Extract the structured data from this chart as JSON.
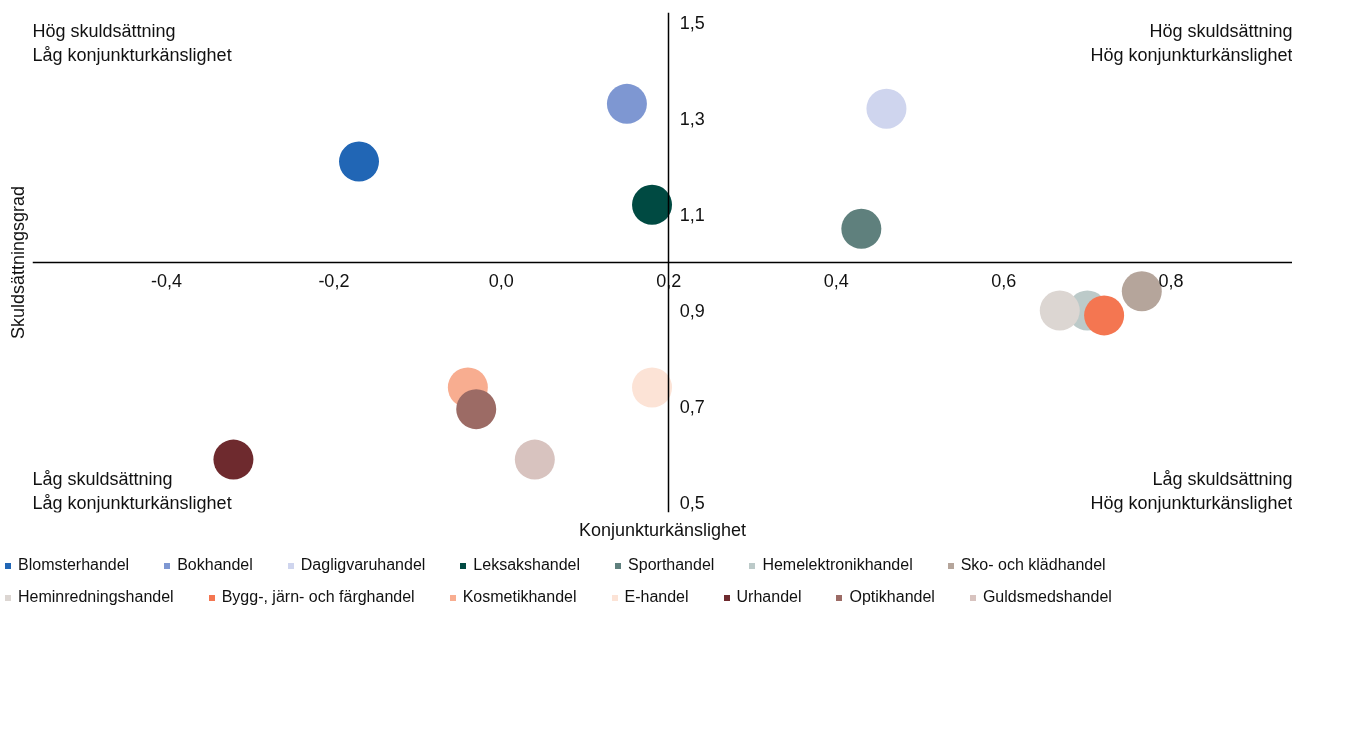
{
  "chart_data": {
    "type": "scatter",
    "xlabel": "Konjunkturkänslighet",
    "ylabel": "Skuldsättningsgrad",
    "xlim": [
      -0.56,
      0.945
    ],
    "ylim": [
      0.48,
      1.52
    ],
    "xticks": [
      {
        "value": -0.4,
        "label": "-0,4"
      },
      {
        "value": -0.2,
        "label": "-0,2"
      },
      {
        "value": 0.0,
        "label": "0,0"
      },
      {
        "value": 0.2,
        "label": "0,2"
      },
      {
        "value": 0.4,
        "label": "0,4"
      },
      {
        "value": 0.6,
        "label": "0,6"
      },
      {
        "value": 0.8,
        "label": "0,8"
      }
    ],
    "yticks": [
      {
        "value": 0.5,
        "label": "0,5"
      },
      {
        "value": 0.7,
        "label": "0,7"
      },
      {
        "value": 0.9,
        "label": "0,9"
      },
      {
        "value": 1.1,
        "label": "1,1"
      },
      {
        "value": 1.3,
        "label": "1,3"
      },
      {
        "value": 1.5,
        "label": "1,5"
      }
    ],
    "marker": "circle",
    "legend": "bottom",
    "annotations": [
      "Hög skuldsättning\nLåg konjunkturkänslighet",
      "Hög skuldsättning\nHög konjunkturkänslighet",
      "Låg skuldsättning\nLåg konjunkturkänslighet",
      "Låg skuldsättning\nHög konjunkturkänslighet"
    ],
    "series": [
      {
        "name": "Blomsterhandel",
        "color": "#2166b5",
        "x": [
          -0.17
        ],
        "values": [
          1.21
        ]
      },
      {
        "name": "Bokhandel",
        "color": "#7e97d2",
        "x": [
          0.15
        ],
        "values": [
          1.33
        ]
      },
      {
        "name": "Dagligvaruhandel",
        "color": "#cfd5ee",
        "x": [
          0.46
        ],
        "values": [
          1.32
        ]
      },
      {
        "name": "Leksakshandel",
        "color": "#004a42",
        "x": [
          0.18
        ],
        "values": [
          1.12
        ]
      },
      {
        "name": "Sporthandel",
        "color": "#5f807d",
        "x": [
          0.43
        ],
        "values": [
          1.07
        ]
      },
      {
        "name": "Hemelektronikhandel",
        "color": "#bccac9",
        "x": [
          0.7
        ],
        "values": [
          0.9
        ]
      },
      {
        "name": "Sko- och klädhandel",
        "color": "#b5a59b",
        "x": [
          0.765
        ],
        "values": [
          0.94
        ]
      },
      {
        "name": "Heminredningshandel",
        "color": "#dcd6d2",
        "x": [
          0.667
        ],
        "values": [
          0.9
        ]
      },
      {
        "name": "Bygg-, järn- och färghandel",
        "color": "#f47651",
        "x": [
          0.72
        ],
        "values": [
          0.89
        ]
      },
      {
        "name": "Kosmetikhandel",
        "color": "#f8ad90",
        "x": [
          -0.04
        ],
        "values": [
          0.74
        ]
      },
      {
        "name": "E-handel",
        "color": "#fce3d6",
        "x": [
          0.18
        ],
        "values": [
          0.74
        ]
      },
      {
        "name": "Urhandel",
        "color": "#6e2a2e",
        "x": [
          -0.32
        ],
        "values": [
          0.59
        ]
      },
      {
        "name": "Optikhandel",
        "color": "#9c6b65",
        "x": [
          -0.03
        ],
        "values": [
          0.695
        ]
      },
      {
        "name": "Guldsmedshandel",
        "color": "#d8c3bf",
        "x": [
          0.04
        ],
        "values": [
          0.59
        ]
      }
    ]
  }
}
